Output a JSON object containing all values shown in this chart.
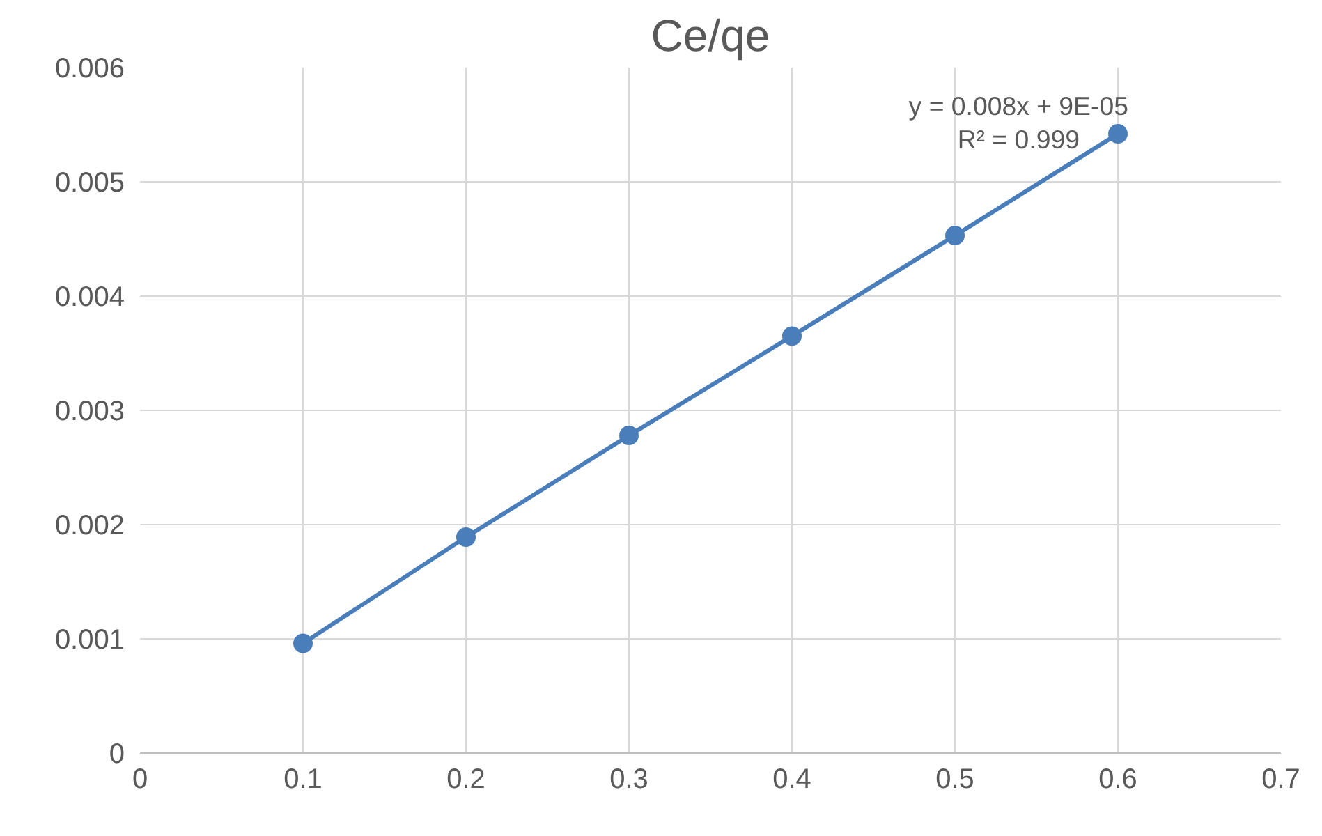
{
  "chart_data": {
    "type": "line",
    "title": "Ce/qe",
    "x": [
      0.1,
      0.2,
      0.3,
      0.4,
      0.5,
      0.6
    ],
    "series": [
      {
        "color": "#4a7ebb",
        "values": [
          0.00096,
          0.00189,
          0.00278,
          0.00365,
          0.00453,
          0.00542
        ]
      }
    ],
    "xlim": [
      0,
      0.7
    ],
    "xticks": [
      0,
      0.1,
      0.2,
      0.3,
      0.4,
      0.5,
      0.6,
      0.7
    ],
    "ylim": [
      0,
      0.006
    ],
    "yticks": [
      0,
      0.001,
      0.002,
      0.003,
      0.004,
      0.005,
      0.006
    ],
    "grid": true,
    "marker": "circle",
    "line_style": "solid",
    "annotations": [
      "y = 0.008x + 9E-05",
      "R² = 0.999"
    ]
  }
}
